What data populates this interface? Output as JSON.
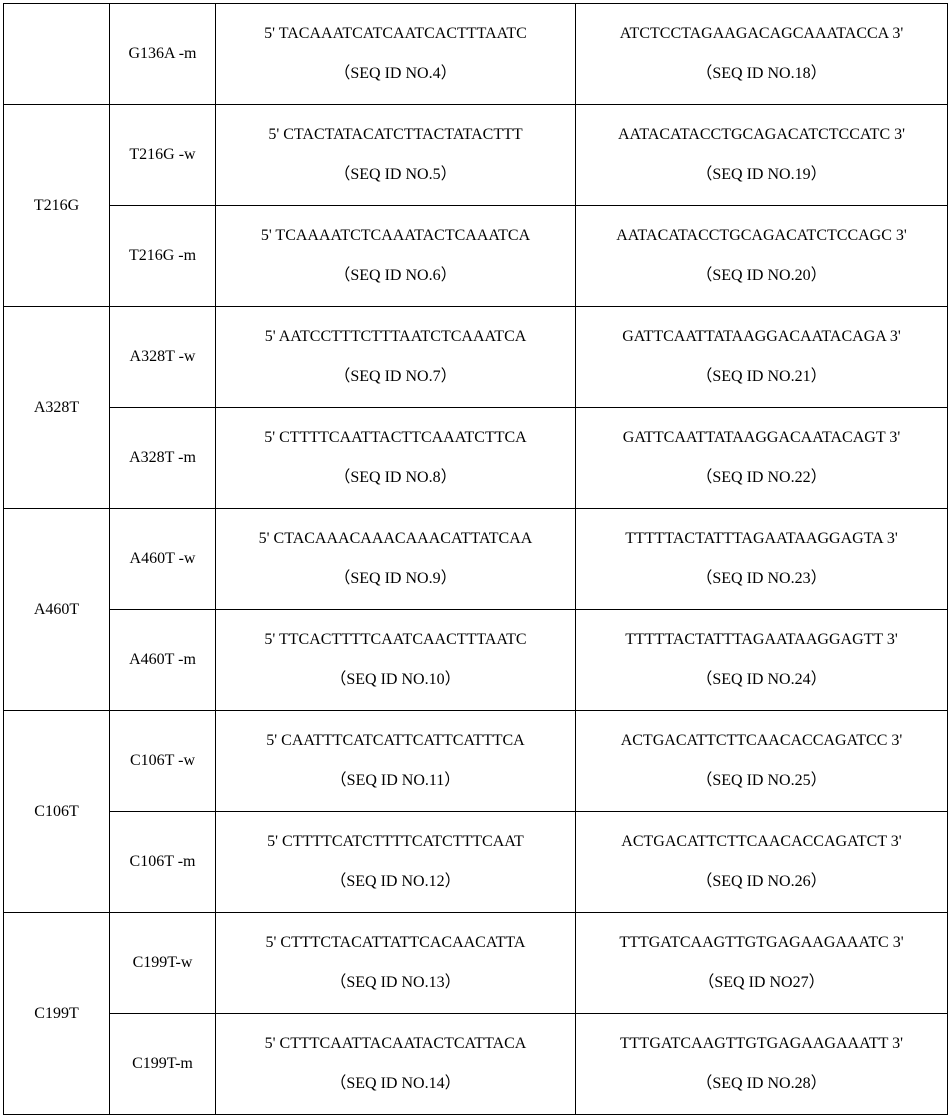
{
  "table": {
    "rows": [
      {
        "group": null,
        "span": 1,
        "variant": "G136A -m",
        "forward_seq": "5' TACAAATCATCAATCACTTTAATC",
        "forward_id": "（SEQ ID NO.4）",
        "reverse_seq": "ATCTCCTAGAAGACAGCAAATACCA 3'",
        "reverse_id": "（SEQ ID NO.18）"
      },
      {
        "group": "T216G",
        "span": 2,
        "variant": "T216G -w",
        "forward_seq": "5' CTACTATACATCTTACTATACTTT",
        "forward_id": "（SEQ ID NO.5）",
        "reverse_seq": "AATACATACCTGCAGACATCTCCATC 3'",
        "reverse_id": "（SEQ ID NO.19）"
      },
      {
        "group": null,
        "span": 0,
        "variant": "T216G -m",
        "forward_seq": "5' TCAAAATCTCAAATACTCAAATCA",
        "forward_id": "（SEQ ID NO.6）",
        "reverse_seq": "AATACATACCTGCAGACATCTCCAGC 3'",
        "reverse_id": "（SEQ ID NO.20）"
      },
      {
        "group": "A328T",
        "span": 2,
        "variant": "A328T -w",
        "forward_seq": "5' AATCCTTTCTTTAATCTCAAATCA",
        "forward_id": "（SEQ ID NO.7）",
        "reverse_seq": "GATTCAATTATAAGGACAATACAGA   3'",
        "reverse_id": "（SEQ ID NO.21）"
      },
      {
        "group": null,
        "span": 0,
        "variant": "A328T -m",
        "forward_seq": "5' CTTTTCAATTACTTCAAATCTTCA",
        "forward_id": "（SEQ ID NO.8）",
        "reverse_seq": "GATTCAATTATAAGGACAATACAGT   3'",
        "reverse_id": "（SEQ ID NO.22）"
      },
      {
        "group": "A460T",
        "span": 2,
        "variant": "A460T -w",
        "forward_seq": "5' CTACAAACAAACAAACATTATCAA",
        "forward_id": "（SEQ ID NO.9）",
        "reverse_seq": "TTTTTACTATTTAGAATAAGGAGTA   3'",
        "reverse_id": "（SEQ ID NO.23）"
      },
      {
        "group": null,
        "span": 0,
        "variant": "A460T -m",
        "forward_seq": "5' TTCACTTTTCAATCAACTTTAATC",
        "forward_id": "（SEQ ID NO.10）",
        "reverse_seq": "TTTTTACTATTTAGAATAAGGAGTT   3'",
        "reverse_id": "（SEQ ID NO.24）"
      },
      {
        "group": "C106T",
        "span": 2,
        "variant": "C106T -w",
        "forward_seq": "5' CAATTTCATCATTCATTCATTTCA",
        "forward_id": "（SEQ ID NO.11）",
        "reverse_seq": "ACTGACATTCTTCAACACCAGATCC 3'",
        "reverse_id": "（SEQ ID NO.25）"
      },
      {
        "group": null,
        "span": 0,
        "variant": "C106T -m",
        "forward_seq": "5' CTTTTCATCTTTTCATCTTTCAAT",
        "forward_id": "（SEQ ID NO.12）",
        "reverse_seq": "ACTGACATTCTTCAACACCAGATCT   3'",
        "reverse_id": "（SEQ ID NO.26）"
      },
      {
        "group": "C199T",
        "span": 2,
        "variant": "C199T-w",
        "forward_seq": "5' CTTTCTACATTATTCACAACATTA",
        "forward_id": "（SEQ ID NO.13）",
        "reverse_seq": "TTTGATCAAGTTGTGAGAAGAAATC 3'",
        "reverse_id": "（SEQ ID NO27）"
      },
      {
        "group": null,
        "span": 0,
        "variant": "C199T-m",
        "forward_seq": "5' CTTTCAATTACAATACTCATTACA",
        "forward_id": "（SEQ ID NO.14）",
        "reverse_seq": "TTTGATCAAGTTGTGAGAAGAAATT 3'",
        "reverse_id": "（SEQ ID NO.28）"
      }
    ]
  }
}
